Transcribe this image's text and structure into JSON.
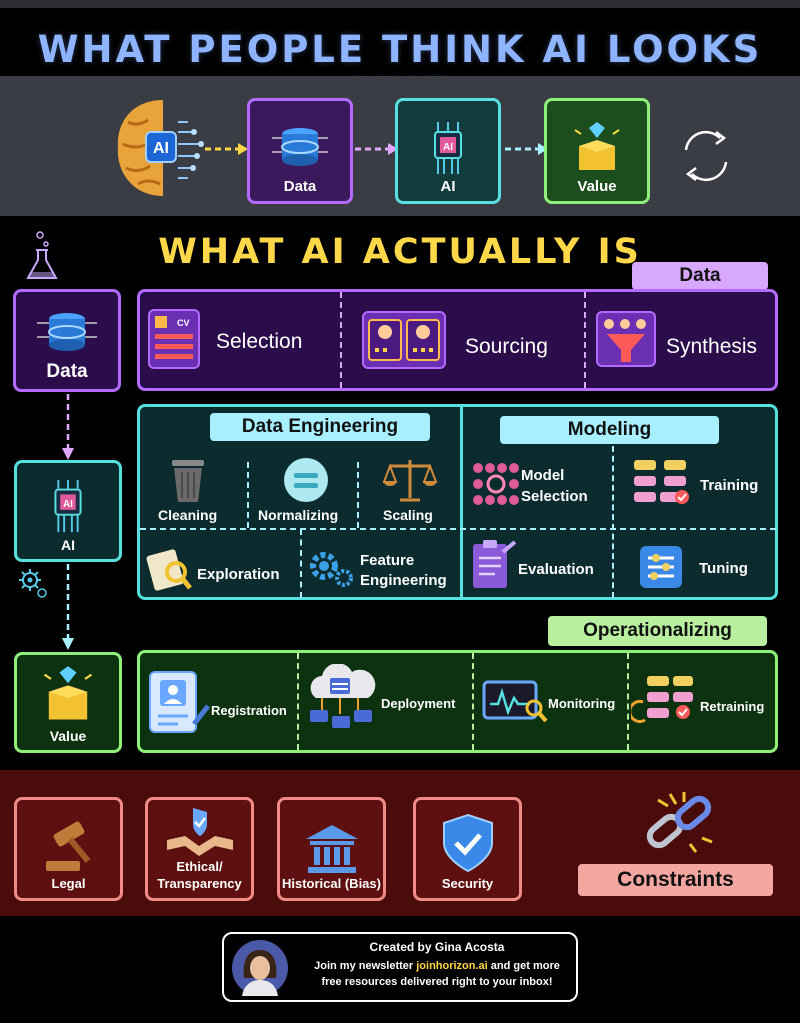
{
  "header": {
    "title": "WHAT PEOPLE THINK AI LOOKS LIKE"
  },
  "perception": {
    "brain_badge": "AI",
    "steps": [
      {
        "label": "Data",
        "color": "#b36bff",
        "bg": "#3a1a5c"
      },
      {
        "label": "AI",
        "color": "#56e0e0",
        "bg": "#123c3c"
      },
      {
        "label": "Value",
        "color": "#8ef07a",
        "bg": "#1c4d1c"
      }
    ]
  },
  "reality": {
    "title": "WHAT AI ACTUALLY IS"
  },
  "left_column": {
    "data": "Data",
    "ai": "AI",
    "value": "Value"
  },
  "data_section": {
    "tag": "Data",
    "items": [
      "Selection",
      "Sourcing",
      "Synthesis"
    ],
    "icon_text": {
      "cv": "CV"
    }
  },
  "engineering_section": {
    "tag": "Data Engineering",
    "items": [
      "Cleaning",
      "Normalizing",
      "Scaling",
      "Exploration",
      "Feature Engineering"
    ]
  },
  "modeling_section": {
    "tag": "Modeling",
    "items": [
      "Model Selection",
      "Training",
      "Evaluation",
      "Tuning"
    ]
  },
  "operational_section": {
    "tag": "Operationalizing",
    "items": [
      "Registration",
      "Deployment",
      "Monitoring",
      "Retraining"
    ]
  },
  "constraints": {
    "tag": "Constraints",
    "items": [
      "Legal",
      "Ethical/ Transparency",
      "Historical (Bias)",
      "Security"
    ]
  },
  "footer": {
    "created_by": "Created by Gina Acosta",
    "line1_pre": "Join my newsletter ",
    "link": "joinhorizon.ai",
    "line1_post": " and get more",
    "line2": "free resources delivered right to your inbox!"
  },
  "colors": {
    "purple": "#b36bff",
    "purple_bg": "#2a0d4a",
    "teal": "#56e0e0",
    "teal_bg": "#0c2b2e",
    "green": "#8ef07a",
    "green_bg": "#0d3210",
    "gold": "#ffd84a",
    "blue_title": "#8fb4ff"
  }
}
